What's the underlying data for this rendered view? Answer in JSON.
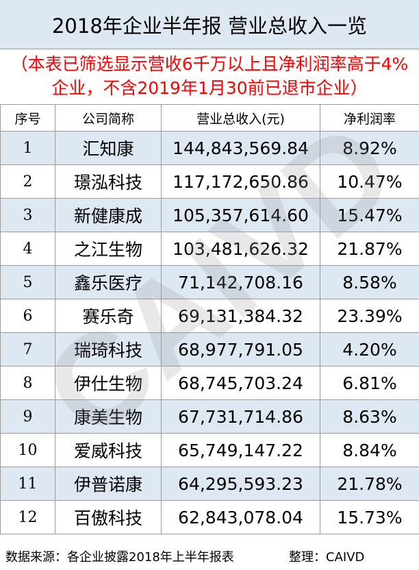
{
  "title": "2018年企业半年报 营业总收入一览",
  "note": "（本表已筛选显示营收6千万以上且净利润率高于4%企业，不含2019年1月30前已退市企业）",
  "headers": [
    "序号",
    "公司简称",
    "营业总收入(元)",
    "净利润率"
  ],
  "rows": [
    {
      "no": "1",
      "name": "汇知康",
      "revenue": "144,843,569.84",
      "margin": "8.92%"
    },
    {
      "no": "2",
      "name": "璟泓科技",
      "revenue": "117,172,650.86",
      "margin": "10.47%"
    },
    {
      "no": "3",
      "name": "新健康成",
      "revenue": "105,357,614.60",
      "margin": "15.47%"
    },
    {
      "no": "4",
      "name": "之江生物",
      "revenue": "103,481,626.32",
      "margin": "21.87%"
    },
    {
      "no": "5",
      "name": "鑫乐医疗",
      "revenue": "71,142,708.16",
      "margin": "8.58%"
    },
    {
      "no": "6",
      "name": "赛乐奇",
      "revenue": "69,131,384.32",
      "margin": "23.39%"
    },
    {
      "no": "7",
      "name": "瑞琦科技",
      "revenue": "68,977,791.05",
      "margin": "4.20%"
    },
    {
      "no": "8",
      "name": "伊仕生物",
      "revenue": "68,745,703.24",
      "margin": "6.81%"
    },
    {
      "no": "9",
      "name": "康美生物",
      "revenue": "67,731,714.86",
      "margin": "8.63%"
    },
    {
      "no": "10",
      "name": "爱威科技",
      "revenue": "65,749,147.22",
      "margin": "8.84%"
    },
    {
      "no": "11",
      "name": "伊普诺康",
      "revenue": "64,295,593.23",
      "margin": "21.78%"
    },
    {
      "no": "12",
      "name": "百傲科技",
      "revenue": "62,843,078.04",
      "margin": "15.73%"
    }
  ],
  "footer": {
    "source": "数据来源：各企业披露2018年上半年报表",
    "organizer": "整理：CAIVD"
  },
  "watermark": "CAIVD",
  "colors": {
    "header_band": "#dde8f2",
    "note_text": "#ff0000",
    "border": "#9a9a9a"
  }
}
